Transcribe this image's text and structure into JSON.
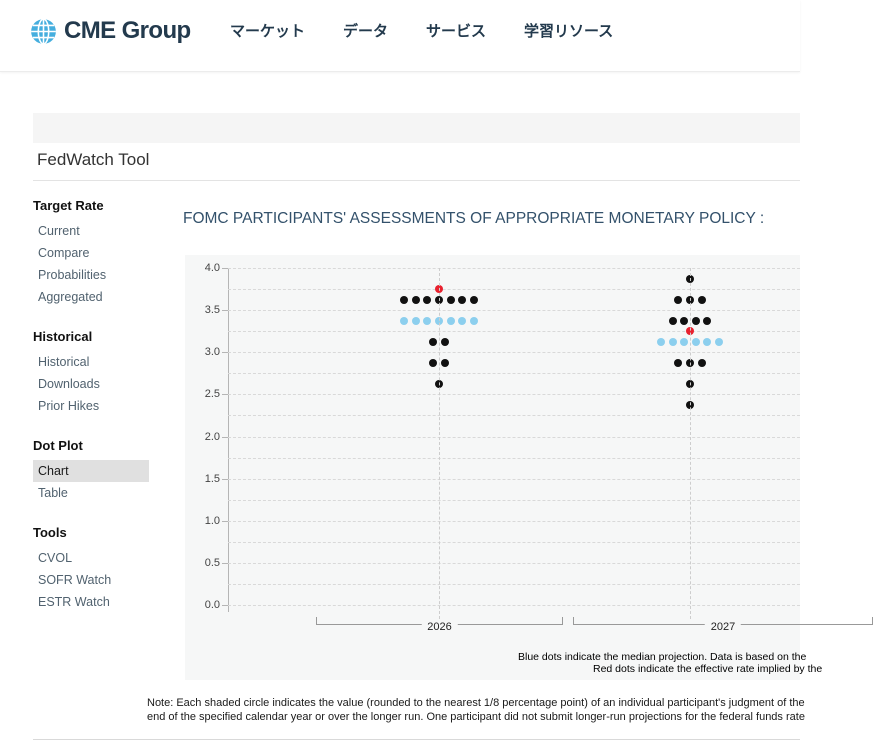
{
  "header": {
    "logo_text": "CME Group",
    "nav_items": [
      {
        "label": "マーケット"
      },
      {
        "label": "データ"
      },
      {
        "label": "サービス"
      },
      {
        "label": "学習リソース"
      }
    ]
  },
  "page": {
    "title": "FedWatch Tool"
  },
  "sidebar": {
    "sections": [
      {
        "header": "Target Rate",
        "items": [
          {
            "label": "Current"
          },
          {
            "label": "Compare"
          },
          {
            "label": "Probabilities"
          },
          {
            "label": "Aggregated"
          }
        ]
      },
      {
        "header": "Historical",
        "items": [
          {
            "label": "Historical"
          },
          {
            "label": "Downloads"
          },
          {
            "label": "Prior Hikes"
          }
        ]
      },
      {
        "header": "Dot Plot",
        "items": [
          {
            "label": "Chart",
            "selected": true
          },
          {
            "label": "Table"
          }
        ]
      },
      {
        "header": "Tools",
        "items": [
          {
            "label": "CVOL"
          },
          {
            "label": "SOFR Watch"
          },
          {
            "label": "ESTR Watch"
          }
        ]
      }
    ]
  },
  "chart": {
    "title": "FOMC PARTICIPANTS' ASSESSMENTS OF APPROPRIATE MONETARY POLICY : ",
    "legend_line1": "Blue dots indicate the median projection. Data is based on the",
    "legend_line2": "Red dots indicate the effective rate implied by the",
    "note_line1": "Note: Each shaded circle indicates the value (rounded to the nearest 1/8 percentage point) of an individual participant's judgment of the",
    "note_line2": "end of the specified calendar year or over the longer run. One participant did not submit longer-run projections for the federal funds rate"
  },
  "chart_data": {
    "type": "scatter",
    "title": "FOMC PARTICIPANTS' ASSESSMENTS OF APPROPRIATE MONETARY POLICY : ",
    "ylim": [
      0.0,
      4.0
    ],
    "y_ticks": [
      "4.0",
      "3.5",
      "3.0",
      "2.5",
      "2.0",
      "1.5",
      "1.0",
      "0.5",
      "0.0"
    ],
    "gridline_step": 0.25,
    "grid": true,
    "legend_position": "bottom",
    "categories": [
      "2026",
      "2027"
    ],
    "colors": {
      "black": "#111111",
      "blue": "#8ccfee",
      "red": "#e8212e"
    },
    "color_meaning": {
      "black": "participant projection",
      "blue": "median projection",
      "red": "effective rate implied by futures"
    },
    "series": [
      {
        "category": "2026",
        "dots": [
          {
            "rate": 3.75,
            "color": "red",
            "count": 1
          },
          {
            "rate": 3.625,
            "color": "black",
            "count": 7
          },
          {
            "rate": 3.375,
            "color": "blue",
            "count": 7
          },
          {
            "rate": 3.125,
            "color": "black",
            "count": 2
          },
          {
            "rate": 2.875,
            "color": "black",
            "count": 2
          },
          {
            "rate": 2.625,
            "color": "black",
            "count": 1
          }
        ]
      },
      {
        "category": "2027",
        "dots": [
          {
            "rate": 3.875,
            "color": "black",
            "count": 1
          },
          {
            "rate": 3.625,
            "color": "black",
            "count": 3
          },
          {
            "rate": 3.375,
            "color": "black",
            "count": 4
          },
          {
            "rate": 3.25,
            "color": "red",
            "count": 1
          },
          {
            "rate": 3.125,
            "color": "blue",
            "count": 6
          },
          {
            "rate": 2.875,
            "color": "black",
            "count": 3
          },
          {
            "rate": 2.625,
            "color": "black",
            "count": 1
          },
          {
            "rate": 2.375,
            "color": "black",
            "count": 1
          }
        ]
      }
    ]
  }
}
